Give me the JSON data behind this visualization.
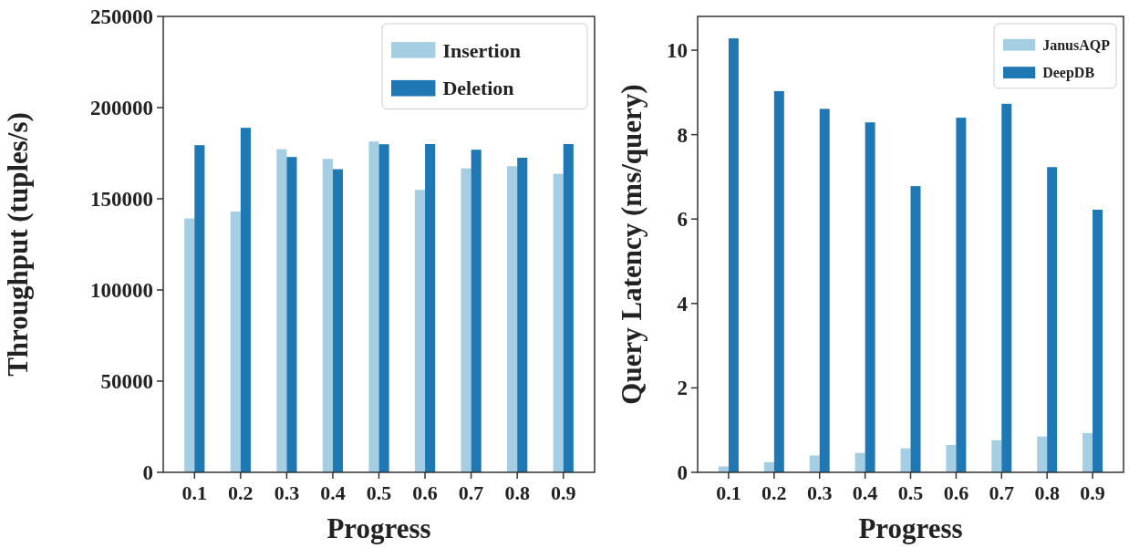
{
  "chart_data": [
    {
      "type": "bar",
      "xlabel": "Progress",
      "ylabel": "Throughput (tuples/s)",
      "categories": [
        "0.1",
        "0.2",
        "0.3",
        "0.4",
        "0.5",
        "0.6",
        "0.7",
        "0.8",
        "0.9"
      ],
      "ylim": [
        0,
        250000
      ],
      "yticks": [
        0,
        50000,
        100000,
        150000,
        200000,
        250000
      ],
      "grid": false,
      "legend": "top right",
      "series": [
        {
          "name": "Insertion",
          "color": "#a6cee3",
          "values": [
            139200,
            143000,
            177200,
            171900,
            181400,
            154900,
            166700,
            167900,
            163700
          ]
        },
        {
          "name": "Deletion",
          "color": "#1f78b4",
          "values": [
            179400,
            188900,
            172900,
            166200,
            179900,
            180000,
            176900,
            172500,
            180000
          ]
        }
      ]
    },
    {
      "type": "bar",
      "xlabel": "Progress",
      "ylabel": "Query Latency (ms/query)",
      "categories": [
        "0.1",
        "0.2",
        "0.3",
        "0.4",
        "0.5",
        "0.6",
        "0.7",
        "0.8",
        "0.9"
      ],
      "ylim": [
        0,
        10.8
      ],
      "yticks": [
        0,
        2,
        4,
        6,
        8,
        10
      ],
      "grid": false,
      "legend": "top right",
      "series": [
        {
          "name": "JanusAQP",
          "color": "#a6cee3",
          "values": [
            0.14,
            0.24,
            0.4,
            0.46,
            0.57,
            0.65,
            0.76,
            0.85,
            0.93
          ]
        },
        {
          "name": "DeepDB",
          "color": "#1f78b4",
          "values": [
            10.28,
            9.03,
            8.61,
            8.29,
            6.78,
            8.4,
            8.73,
            7.23,
            6.22
          ]
        }
      ]
    }
  ]
}
